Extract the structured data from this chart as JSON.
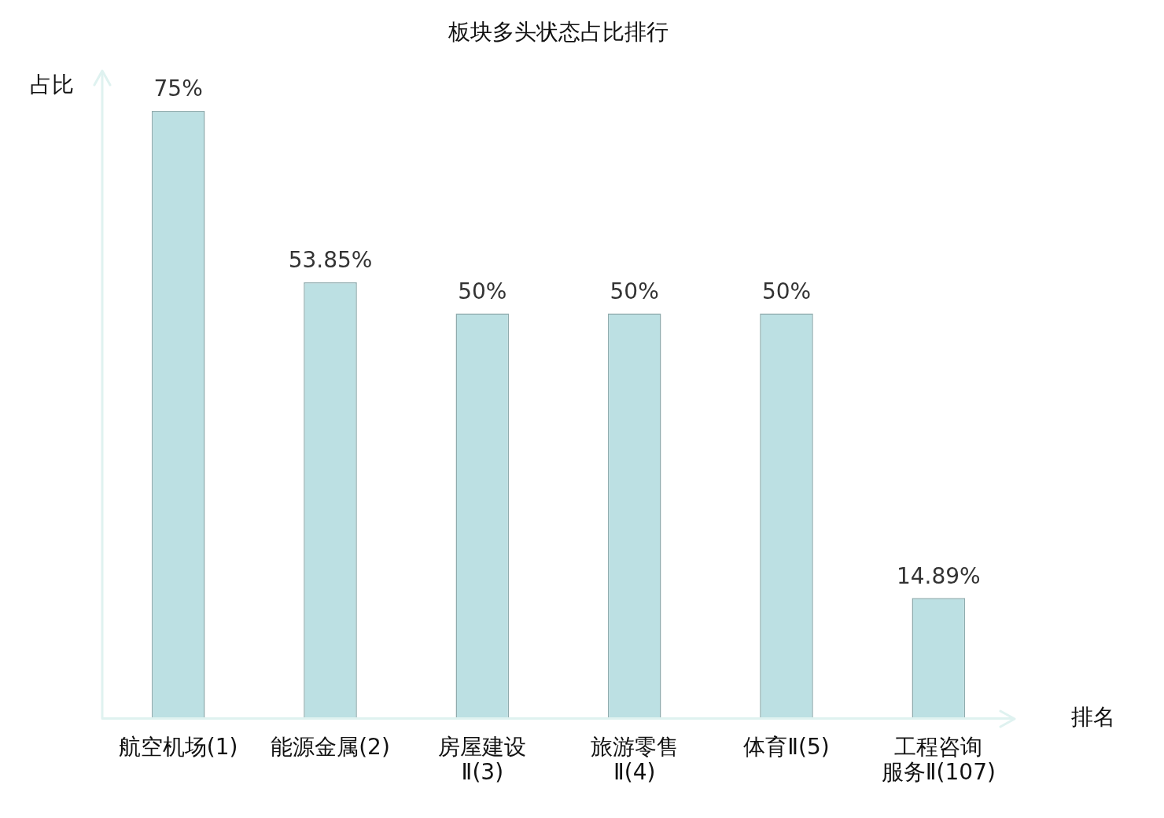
{
  "chart_data": {
    "type": "bar",
    "title": "板块多头状态占比排行",
    "xlabel": "排名",
    "ylabel": "占比",
    "categories": [
      "航空机场(1)",
      "能源金属(2)",
      "房屋建设Ⅱ(3)",
      "旅游零售Ⅱ(4)",
      "体育Ⅱ(5)",
      "工程咨询服务Ⅱ(107)"
    ],
    "values": [
      75,
      53.85,
      50,
      50,
      50,
      14.89
    ],
    "value_labels": [
      "75%",
      "53.85%",
      "50%",
      "50%",
      "50%",
      "14.89%"
    ],
    "color": "#bce0e3",
    "grid": false,
    "tick_labels": "x"
  }
}
